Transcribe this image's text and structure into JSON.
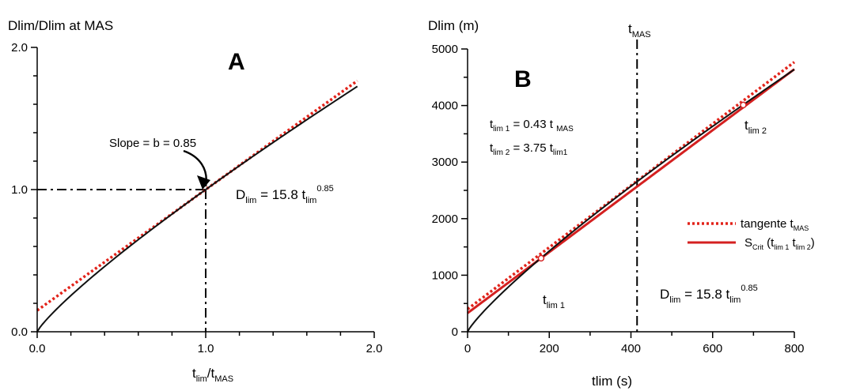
{
  "chart_data": [
    {
      "panel": "A",
      "type": "line",
      "ylabel": "Dlim/Dlim at MAS",
      "xlabel": {
        "main": "t",
        "sub1": "lim",
        "mid": "/t",
        "sub2": "MAS"
      },
      "xlim": [
        0,
        2.0
      ],
      "ylim": [
        0,
        2.0
      ],
      "xticks": [
        0.0,
        1.0,
        2.0
      ],
      "yticks": [
        0.0,
        1.0,
        2.0
      ],
      "xtick_labels": [
        "0.0",
        "1.0",
        "2.0"
      ],
      "ytick_labels": [
        "0.0",
        "1.0",
        "2.0"
      ],
      "annotation_slope": "Slope = b = 0.85",
      "equation": {
        "base": "D",
        "sub1": "lim",
        "mid": " = 15.8 t",
        "sub2": "lim",
        "sup": "0.85"
      },
      "power_exponent": 0.85,
      "reference_point": [
        1.0,
        1.0
      ],
      "series": [
        {
          "style": "solid-black",
          "kind": "power",
          "coef": 1.0,
          "exp": 0.85,
          "x": [
            0.0,
            1.9
          ]
        },
        {
          "style": "dotted-red",
          "kind": "linear",
          "intercept": 0.15,
          "slope": 0.85,
          "x": [
            0.0,
            1.9
          ]
        }
      ],
      "colors": {
        "power": "#111111",
        "tangent": "#e2231a",
        "axis": "#000000"
      }
    },
    {
      "panel": "B",
      "type": "line",
      "ylabel": "Dlim (m)",
      "xlabel": "tlim (s)",
      "xlim": [
        0,
        800
      ],
      "ylim": [
        0,
        5000
      ],
      "xticks": [
        0,
        200,
        400,
        600,
        800
      ],
      "yticks": [
        0,
        1000,
        2000,
        3000,
        4000,
        5000
      ],
      "xtick_labels": [
        "0",
        "200",
        "400",
        "600",
        "800"
      ],
      "ytick_labels": [
        "0",
        "1000",
        "2000",
        "3000",
        "4000",
        "5000"
      ],
      "vertical_line": {
        "x": 415,
        "label_main": "t",
        "label_sub": "MAS"
      },
      "note_lines": [
        {
          "t": "t",
          "s1": "lim 1",
          "m": " = 0.43 t ",
          "s2": "MAS",
          "s3": ""
        },
        {
          "t": "t",
          "s1": "lim 2",
          "m": " = 3.75 t",
          "s2": "lim1",
          "s3": ""
        }
      ],
      "point_labels": [
        {
          "main": "t",
          "sub": "lim 1",
          "x": 180,
          "y": 1300
        },
        {
          "main": "t",
          "sub": "lim 2",
          "x": 675,
          "y": 4010
        }
      ],
      "equation": {
        "base": "D",
        "sub1": "lim",
        "mid": " = 15.8 t",
        "sub2": "lim",
        "sup": "0.85"
      },
      "legend": [
        {
          "label_main": "tangente t",
          "label_sub": "MAS",
          "style": "dotted-red"
        },
        {
          "label_main": "S",
          "label_sub": "Crit",
          "label_rest": " (t",
          "label_sub2": "lim 1",
          "label_rest2": " t",
          "label_sub3": "lim 2",
          "label_end": ")",
          "style": "solid-red"
        }
      ],
      "legend_position": "right",
      "series": [
        {
          "style": "solid-black",
          "kind": "power",
          "coef": 15.8,
          "exp": 0.85,
          "x": [
            0,
            800
          ]
        },
        {
          "style": "dotted-red",
          "kind": "linear",
          "intercept": 400,
          "slope": 5.46,
          "x": [
            0,
            800
          ]
        },
        {
          "style": "solid-red",
          "kind": "linear",
          "intercept": 330,
          "slope": 5.39,
          "x": [
            0,
            800
          ]
        }
      ],
      "markers": [
        {
          "x": 180,
          "y": 1300
        },
        {
          "x": 675,
          "y": 4010
        }
      ],
      "colors": {
        "power": "#111111",
        "tangent": "#e2231a",
        "scrit": "#d42020",
        "axis": "#000000"
      }
    }
  ]
}
